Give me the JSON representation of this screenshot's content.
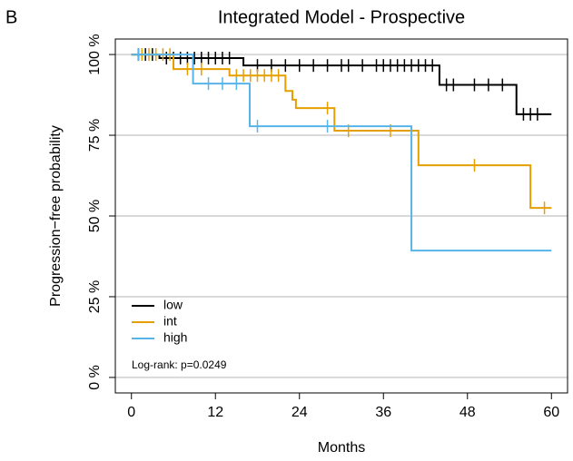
{
  "panel_label": "B",
  "chart_data": {
    "type": "step",
    "title": "Integrated Model - Prospective",
    "xlabel": "Months",
    "ylabel": "Progression−free probability",
    "annotation": "Log-rank: p=0.0249",
    "xlim": [
      -2.3,
      62.3
    ],
    "ylim": [
      -4.8,
      104.8
    ],
    "xticks": [
      0,
      12,
      24,
      36,
      48,
      60
    ],
    "yticks": [
      {
        "value": 0,
        "label": "0 %"
      },
      {
        "value": 25,
        "label": "25 %"
      },
      {
        "value": 50,
        "label": "50 %"
      },
      {
        "value": 75,
        "label": "75 %"
      },
      {
        "value": 100,
        "label": "100 %"
      }
    ],
    "grid": true,
    "legend": "bottom-left",
    "series": [
      {
        "name": "low",
        "color": "#000000",
        "x": [
          0,
          4,
          16,
          44,
          55,
          60
        ],
        "values": [
          100,
          98.9,
          96.6,
          90.6,
          81.5,
          81.5
        ],
        "censor_x": [
          1,
          2,
          3,
          5,
          6,
          7,
          8,
          9,
          10,
          11,
          12,
          13,
          14,
          18,
          20,
          22,
          24,
          26,
          28,
          30,
          31,
          33,
          35,
          36,
          37,
          38,
          39,
          40,
          41,
          42,
          43,
          45,
          46,
          49,
          51,
          53,
          56,
          57,
          58
        ],
        "censor_values": [
          100,
          100,
          100,
          98.9,
          98.9,
          98.9,
          98.9,
          98.9,
          98.9,
          98.9,
          98.9,
          98.9,
          98.9,
          96.6,
          96.6,
          96.6,
          96.6,
          96.6,
          96.6,
          96.6,
          96.6,
          96.6,
          96.6,
          96.6,
          96.6,
          96.6,
          96.6,
          96.6,
          96.6,
          96.6,
          96.6,
          90.6,
          90.6,
          90.6,
          90.6,
          90.6,
          81.5,
          81.5,
          81.5
        ]
      },
      {
        "name": "int",
        "color": "#e69f00",
        "x": [
          0,
          6,
          14,
          22,
          23,
          23.5,
          29,
          41,
          57,
          60
        ],
        "values": [
          100,
          95.5,
          93.5,
          88.7,
          86,
          83.4,
          76.4,
          65.7,
          52.5,
          52.5
        ],
        "censor_x": [
          1.5,
          2.5,
          3.5,
          4.5,
          5.5,
          8,
          10,
          15,
          16,
          17,
          18,
          19,
          20,
          21,
          28,
          31,
          37,
          49,
          59
        ],
        "censor_values": [
          100,
          100,
          100,
          100,
          100,
          95.5,
          95.5,
          93.5,
          93.5,
          93.5,
          93.5,
          93.5,
          93.5,
          93.5,
          83.4,
          76.4,
          76.4,
          65.7,
          52.5
        ]
      },
      {
        "name": "high",
        "color": "#56b4e9",
        "x": [
          0,
          8.8,
          16.9,
          40,
          60
        ],
        "values": [
          100,
          91,
          77.8,
          39.3,
          39.3
        ],
        "censor_x": [
          1,
          11,
          13,
          15,
          18,
          28
        ],
        "censor_values": [
          100,
          91,
          91,
          91,
          77.8,
          77.8
        ]
      }
    ]
  }
}
